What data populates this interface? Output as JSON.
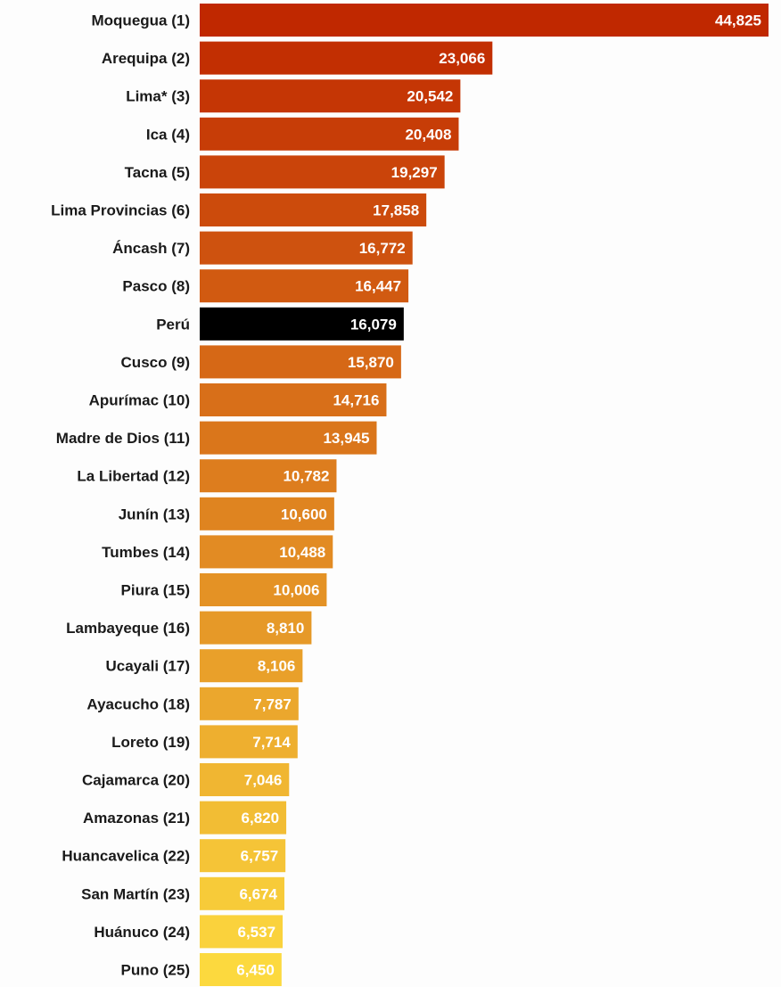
{
  "chart_data": {
    "type": "bar",
    "orientation": "horizontal",
    "title": "",
    "xlabel": "",
    "ylabel": "",
    "xlim": [
      0,
      44825
    ],
    "grid": false,
    "legend": "none",
    "categories": [
      "Moquegua (1)",
      "Arequipa (2)",
      "Lima* (3)",
      "Ica (4)",
      "Tacna (5)",
      "Lima Provincias (6)",
      "Áncash (7)",
      "Pasco (8)",
      "Perú",
      "Cusco (9)",
      "Apurímac (10)",
      "Madre de Dios (11)",
      "La Libertad (12)",
      "Junín (13)",
      "Tumbes (14)",
      "Piura (15)",
      "Lambayeque (16)",
      "Ucayali (17)",
      "Ayacucho (18)",
      "Loreto (19)",
      "Cajamarca (20)",
      "Amazonas (21)",
      "Huancavelica (22)",
      "San Martín (23)",
      "Huánuco (24)",
      "Puno (25)"
    ],
    "values": [
      44825,
      23066,
      20542,
      20408,
      19297,
      17858,
      16772,
      16447,
      16079,
      15870,
      14716,
      13945,
      10782,
      10600,
      10488,
      10006,
      8810,
      8106,
      7787,
      7714,
      7046,
      6820,
      6757,
      6674,
      6537,
      6450
    ],
    "value_labels": [
      "44,825",
      "23,066",
      "20,542",
      "20,408",
      "19,297",
      "17,858",
      "16,772",
      "16,447",
      "16,079",
      "15,870",
      "14,716",
      "13,945",
      "10,782",
      "10,600",
      "10,488",
      "10,006",
      "8,810",
      "8,106",
      "7,787",
      "7,714",
      "7,046",
      "6,820",
      "6,757",
      "6,674",
      "6,537",
      "6,450"
    ],
    "colors": {
      "gradient_top": "#c02800",
      "gradient_bottom": "#fcd93e",
      "highlight": "#000000"
    },
    "highlight_category": "Perú"
  }
}
